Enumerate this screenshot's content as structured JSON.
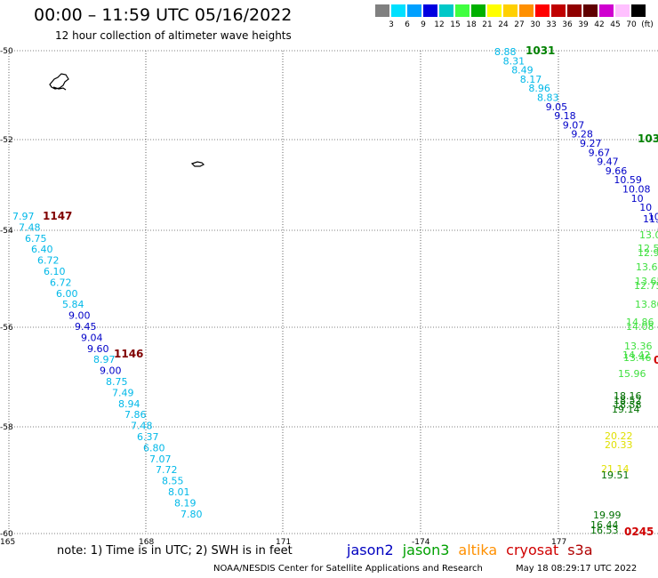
{
  "header": {
    "title": "00:00 – 11:59 UTC 05/16/2022",
    "subtitle": "12 hour collection of altimeter wave heights"
  },
  "legend": {
    "colors": [
      "#808080",
      "#00e0ff",
      "#00a0ff",
      "#0000e0",
      "#00c8c8",
      "#40ff40",
      "#00b000",
      "#ffff00",
      "#ffd000",
      "#ff9000",
      "#ff0000",
      "#c00000",
      "#900000",
      "#600000",
      "#d000d0",
      "#ffc0ff",
      "#000000"
    ],
    "labels": [
      "3",
      "6",
      "9",
      "12",
      "15",
      "18",
      "21",
      "24",
      "27",
      "30",
      "33",
      "36",
      "39",
      "42",
      "45",
      "70",
      "(ft)"
    ]
  },
  "axes": {
    "lat_labels": [
      "-50",
      "-52",
      "-54",
      "-56",
      "-58",
      "-60"
    ],
    "lon_labels": [
      "165",
      "168",
      "171",
      "-174",
      "177"
    ]
  },
  "tracks": [
    {
      "label": "1031",
      "color": "#008000",
      "values": [
        "8.88",
        "8.31",
        "8.49",
        "8.17",
        "8.96",
        "8.83",
        "9.05",
        "9.18",
        "9.07",
        "9.28",
        "9.27",
        "9.67",
        "9.47",
        "9.66",
        "10.59",
        "10.08",
        "10",
        "10",
        "10",
        "11"
      ]
    },
    {
      "label": "103",
      "color": "#008000"
    },
    {
      "label": "1147",
      "color": "#800000",
      "values": [
        "7.97",
        "7.48",
        "6.75",
        "6.40",
        "6.72",
        "6.10",
        "6.72",
        "6.00",
        "5.84",
        "9.00",
        "9.45",
        "9.04",
        "9.60",
        "8.97",
        "9.00",
        "8.75",
        "7.49",
        "8.94",
        "7.86",
        "7.48",
        "6.37",
        "6.80",
        "7.07",
        "7.72",
        "8.55",
        "8.01",
        "8.19",
        "7.80"
      ]
    },
    {
      "label": "1146",
      "color": "#800000"
    },
    {
      "label": "0245",
      "color": "#d00000",
      "values": [
        "11.",
        "13.0",
        "12.5",
        "12.9",
        "13.64",
        "13.65",
        "12.75",
        "13.80",
        "14.86",
        "14.08",
        "13.36",
        "14.42",
        "13.46",
        "15.96",
        "18.16",
        "18.52",
        "18.58",
        "19.14",
        "20.22",
        "20.33",
        "21.14",
        "19.51",
        "19.99",
        "16.44",
        "16.53"
      ]
    }
  ],
  "footer": {
    "note": "note: 1) Time is in UTC; 2) SWH is in feet",
    "satellites": [
      {
        "name": "jason2",
        "color": "#0000c0"
      },
      {
        "name": "jason3",
        "color": "#00a000"
      },
      {
        "name": "altika",
        "color": "#ff9000"
      },
      {
        "name": "cryosat",
        "color": "#d00000"
      },
      {
        "name": "s3a",
        "color": "#b00000"
      }
    ],
    "credit": "NOAA/NESDIS Center for Satellite Applications and Research",
    "timestamp": "May 18 08:29:17 UTC 2022"
  }
}
